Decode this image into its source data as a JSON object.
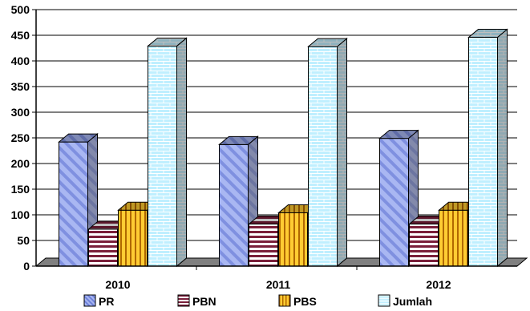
{
  "chart_data": {
    "type": "bar",
    "style": "3d-clustered-column",
    "categories": [
      "2010",
      "2011",
      "2012"
    ],
    "series": [
      {
        "name": "PR",
        "values": [
          242,
          237,
          249
        ],
        "color": "#a9b7f2",
        "pattern": "diagonal-stripes"
      },
      {
        "name": "PBN",
        "values": [
          72,
          82,
          82
        ],
        "color": "#7a1f3a",
        "pattern": "horizontal-stripes"
      },
      {
        "name": "PBS",
        "values": [
          109,
          104,
          109
        ],
        "color": "#ffb000",
        "pattern": "vertical-stripes"
      },
      {
        "name": "Jumlah",
        "values": [
          429,
          428,
          446
        ],
        "color": "#bfefff",
        "pattern": "brick"
      }
    ],
    "ylim": [
      0,
      500
    ],
    "yticks": [
      "0",
      "50",
      "100",
      "150",
      "200",
      "250",
      "300",
      "350",
      "400",
      "450",
      "500"
    ],
    "grid": true,
    "legend": "bottom",
    "title": "",
    "xlabel": "",
    "ylabel": ""
  }
}
